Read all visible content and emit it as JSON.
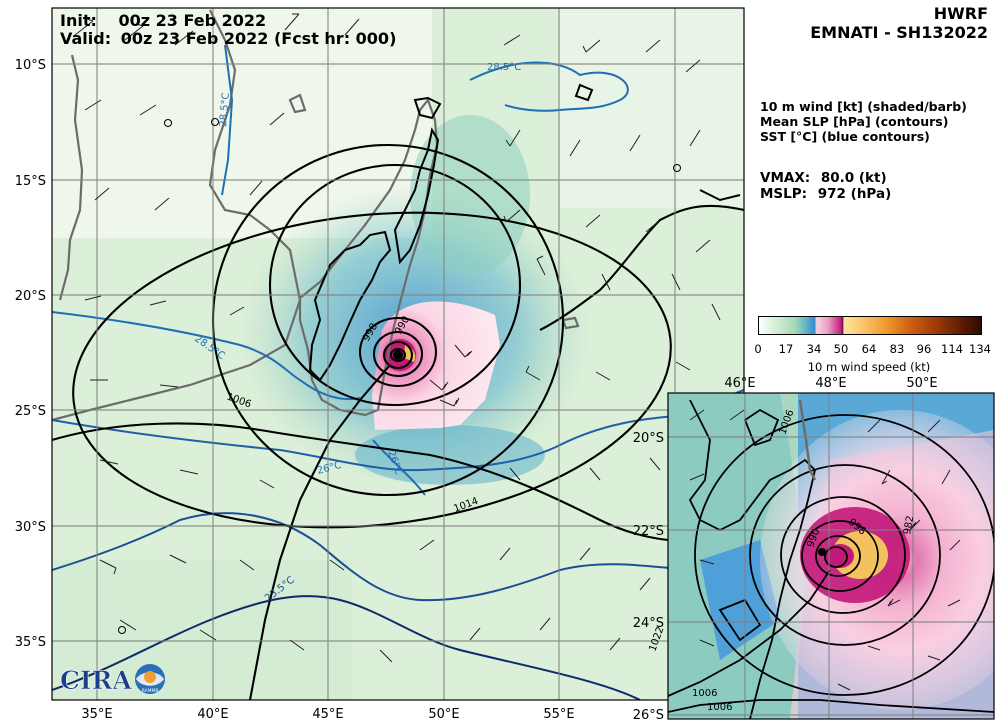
{
  "header": {
    "init_label": "Init:",
    "init_value": "00z 23 Feb 2022",
    "valid_label": "Valid:",
    "valid_value": "00z 23 Feb 2022 (Fcst hr: 000)"
  },
  "panel": {
    "model": "HWRF",
    "storm": "EMNATI - SH132022",
    "legend_lines": [
      "10 m wind [kt] (shaded/barb)",
      "Mean SLP [hPa] (contours)",
      "SST [°C] (blue contours)"
    ],
    "vmax_label": "VMAX:",
    "vmax_value": "80.0 (kt)",
    "mslp_label": "MSLP:",
    "mslp_value": "972 (hPa)"
  },
  "colorbar": {
    "ticks": [
      "0",
      "17",
      "34",
      "50",
      "64",
      "83",
      "96",
      "114",
      "134"
    ],
    "label": "10 m wind speed (kt)"
  },
  "main_map": {
    "lon_ticks": [
      "35°E",
      "40°E",
      "45°E",
      "50°E",
      "55°E"
    ],
    "lat_ticks": [
      "10°S",
      "15°S",
      "20°S",
      "25°S",
      "30°S",
      "35°S"
    ],
    "slp_labels": [
      "1006",
      "1014",
      "998",
      "990"
    ],
    "sst_labels": [
      "28.5°C",
      "28.5°C",
      "28.5°C",
      "26°C",
      "26°C",
      "23.5°C"
    ]
  },
  "inset_map": {
    "lon_ticks": [
      "46°E",
      "48°E",
      "50°E"
    ],
    "lat_ticks": [
      "20°S",
      "22°S",
      "24°S",
      "26°S"
    ],
    "slp_labels": [
      "1006",
      "998",
      "990",
      "982",
      "1022",
      "1006",
      "1006"
    ]
  },
  "logo": {
    "text": "CIRA",
    "badge": "RAMMB"
  }
}
